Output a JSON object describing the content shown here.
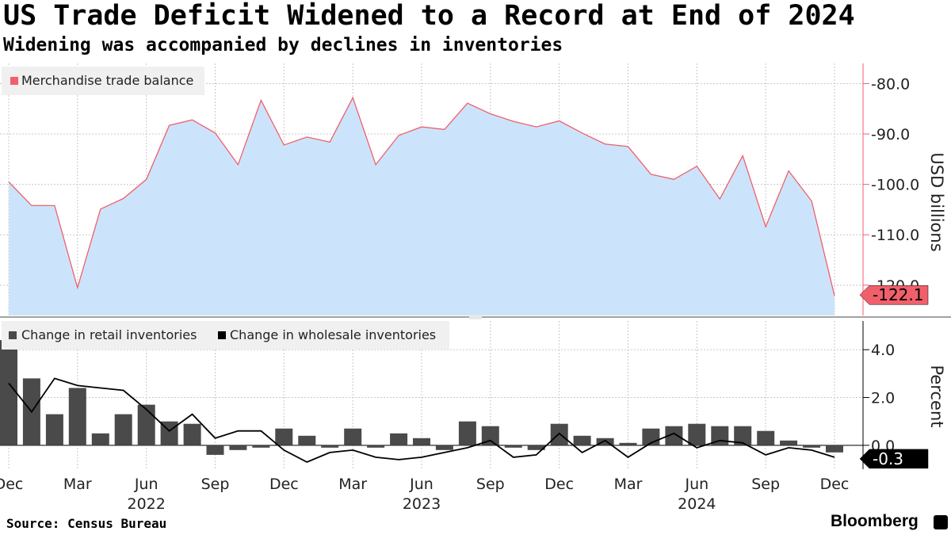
{
  "title": "US Trade Deficit Widened to a Record at End of 2024",
  "subtitle": "Widening was accompanied by declines in inventories",
  "source": "Source: Census Bureau",
  "brand": "Bloomberg",
  "colors": {
    "trade_line": "#f0606b",
    "trade_fill": "#cce4fb",
    "trade_axis": "#f0606b",
    "trade_tag_bg": "#f0606b",
    "retail_bar": "#4a4a4a",
    "wholesale_line": "#000000",
    "grid": "#c8c8c8",
    "legend_bg": "#f0f0f0"
  },
  "chart_data": [
    {
      "type": "area",
      "legend": [
        "Merchandise trade balance"
      ],
      "ylabel": "USD billions",
      "ylim": [
        -126,
        -76
      ],
      "yticks": [
        -80,
        -90,
        -100,
        -110,
        -120
      ],
      "ytick_labels": [
        "-80.0",
        "-90.0",
        "-100.0",
        "-110.0",
        "-120.0"
      ],
      "x": [
        "2021-12",
        "2022-01",
        "2022-02",
        "2022-03",
        "2022-04",
        "2022-05",
        "2022-06",
        "2022-07",
        "2022-08",
        "2022-09",
        "2022-10",
        "2022-11",
        "2022-12",
        "2023-01",
        "2023-02",
        "2023-03",
        "2023-04",
        "2023-05",
        "2023-06",
        "2023-07",
        "2023-08",
        "2023-09",
        "2023-10",
        "2023-11",
        "2023-12",
        "2024-01",
        "2024-02",
        "2024-03",
        "2024-04",
        "2024-05",
        "2024-06",
        "2024-07",
        "2024-08",
        "2024-09",
        "2024-10",
        "2024-11",
        "2024-12"
      ],
      "series": [
        {
          "name": "Merchandise trade balance",
          "values": [
            -99.5,
            -104.2,
            -104.2,
            -120.5,
            -104.9,
            -102.8,
            -99.0,
            -88.3,
            -87.2,
            -89.8,
            -96.1,
            -83.3,
            -92.2,
            -90.6,
            -91.6,
            -82.8,
            -96.1,
            -90.3,
            -88.6,
            -89.1,
            -83.9,
            -86.0,
            -87.5,
            -88.6,
            -87.4,
            -89.8,
            -92.0,
            -92.5,
            -98.0,
            -99.0,
            -96.4,
            -102.9,
            -94.3,
            -108.4,
            -97.3,
            -103.3,
            -122.1
          ]
        }
      ],
      "last_value_label": "-122.1"
    },
    {
      "type": "bar",
      "legend": [
        "Change in retail inventories",
        "Change in wholesale inventories"
      ],
      "ylabel": "Percent",
      "ylim": [
        -1.0,
        5.2
      ],
      "yticks": [
        0.0,
        2.0,
        4.0
      ],
      "ytick_labels": [
        "0.0",
        "2.0",
        "4.0"
      ],
      "x": [
        "2021-12",
        "2022-01",
        "2022-02",
        "2022-03",
        "2022-04",
        "2022-05",
        "2022-06",
        "2022-07",
        "2022-08",
        "2022-09",
        "2022-10",
        "2022-11",
        "2022-12",
        "2023-01",
        "2023-02",
        "2023-03",
        "2023-04",
        "2023-05",
        "2023-06",
        "2023-07",
        "2023-08",
        "2023-09",
        "2023-10",
        "2023-11",
        "2023-12",
        "2024-01",
        "2024-02",
        "2024-03",
        "2024-04",
        "2024-05",
        "2024-06",
        "2024-07",
        "2024-08",
        "2024-09",
        "2024-10",
        "2024-11",
        "2024-12"
      ],
      "series": [
        {
          "name": "Change in retail inventories",
          "type": "bar",
          "values": [
            4.4,
            2.8,
            1.3,
            2.4,
            0.5,
            1.3,
            1.7,
            1.0,
            0.9,
            -0.4,
            -0.2,
            -0.1,
            0.7,
            0.4,
            -0.1,
            0.7,
            -0.1,
            0.5,
            0.3,
            -0.2,
            1.0,
            0.8,
            -0.1,
            -0.2,
            0.9,
            0.4,
            0.3,
            0.1,
            0.7,
            0.8,
            0.9,
            0.8,
            0.8,
            0.6,
            0.2,
            -0.1,
            -0.3
          ]
        },
        {
          "name": "Change in wholesale inventories",
          "type": "line",
          "values": [
            2.6,
            1.4,
            2.8,
            2.5,
            2.4,
            2.3,
            1.5,
            0.6,
            1.3,
            0.3,
            0.6,
            0.6,
            -0.2,
            -0.7,
            -0.3,
            -0.2,
            -0.5,
            -0.6,
            -0.5,
            -0.3,
            -0.1,
            0.2,
            -0.5,
            -0.4,
            0.5,
            -0.3,
            0.2,
            -0.5,
            0.1,
            0.5,
            -0.1,
            0.2,
            0.1,
            -0.4,
            -0.1,
            -0.2,
            -0.5
          ]
        }
      ],
      "last_value_label": "-0.3"
    }
  ],
  "x_axis": {
    "month_labels": [
      "Dec",
      "Mar",
      "Jun",
      "Sep",
      "Dec",
      "Mar",
      "Jun",
      "Sep",
      "Dec",
      "Mar",
      "Jun",
      "Sep",
      "Dec"
    ],
    "month_label_index": [
      0,
      3,
      6,
      9,
      12,
      15,
      18,
      21,
      24,
      27,
      30,
      33,
      36
    ],
    "year_labels": [
      "2022",
      "2023",
      "2024"
    ],
    "year_label_index": [
      6,
      18,
      30
    ]
  }
}
